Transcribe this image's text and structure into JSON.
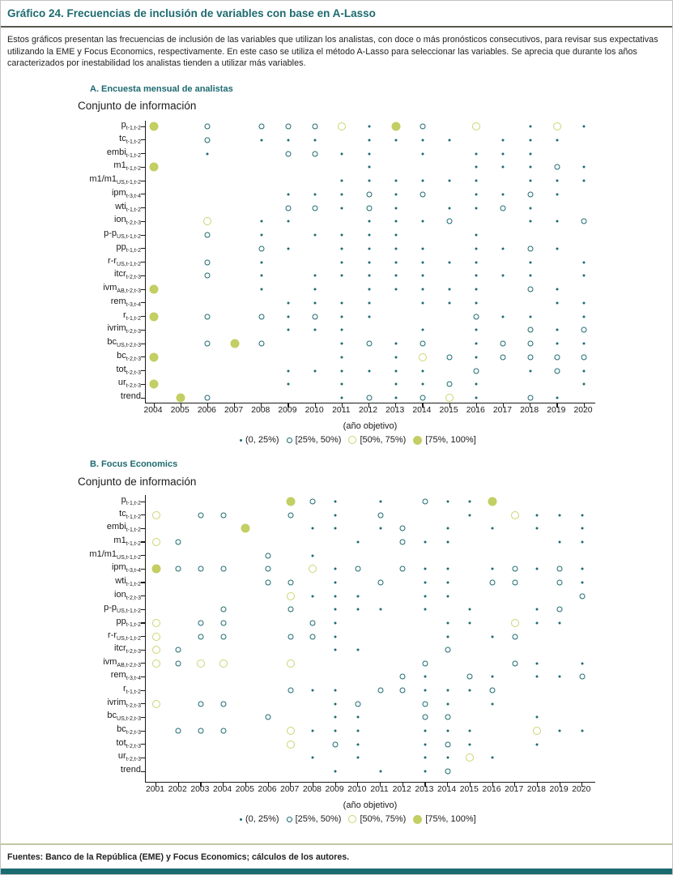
{
  "title": "Gráfico 24. Frecuencias de inclusión de variables con base en A-Lasso",
  "description": "Estos gráficos presentan las frecuencias de inclusión de las variables que utilizan los analistas, con doce o más pronósticos consecutivos, para revisar sus expectativas utilizando la EME y Focus Economics, respectivamente. En este caso se utiliza el método A-Lasso para seleccionar las variables. Se aprecia que durante los años caracterizados por inestabilidad los analistas tienden a utilizar más variables.",
  "footer": "Fuentes: Banco de la República (EME) y Focus Economics; cálculos de los autores.",
  "info_title": "Conjunto de información",
  "axis_title": "(año objetivo)",
  "colors": {
    "heading_teal": "#1d6a70",
    "dot_teal": "#1d6a70",
    "olive_fill": "#c3ce63",
    "olive_ring": "#ccd470",
    "bottom_bar": "#1a6b70",
    "footer_rule": "#c3c8a2"
  },
  "legend": {
    "items": [
      {
        "label": "(0, 25%)",
        "marker": 1
      },
      {
        "label": "[25%, 50%)",
        "marker": 2
      },
      {
        "label": "[50%, 75%)",
        "marker": 3
      },
      {
        "label": "[75%, 100%]",
        "marker": 4
      }
    ]
  },
  "chart_data": [
    {
      "type": "heatmap",
      "panel_label": "A. Encuesta mensual de analistas",
      "xlabel": "(año objetivo)",
      "ylabel": "Conjunto de información",
      "legend_bins": [
        "(0, 25%)",
        "[25%, 50%)",
        "[50%, 75%)",
        "[75%, 100%]"
      ],
      "cell_encoding": "0=not included, 1=(0,25%), 2=[25%,50%), 3=[50%,75%), 4=[75%,100%]",
      "years": [
        2004,
        2005,
        2006,
        2007,
        2008,
        2009,
        2010,
        2011,
        2012,
        2013,
        2014,
        2015,
        2016,
        2017,
        2018,
        2019,
        2020
      ],
      "variables": [
        {
          "m": "p",
          "s": "t-1,t-2"
        },
        {
          "m": "tc",
          "s": "t-1,t-2"
        },
        {
          "m": "embi",
          "s": "t-1,t-2"
        },
        {
          "m": "m1",
          "s": "t-1,t-2"
        },
        {
          "m": "m1/m1",
          "s": "US,t-1,t-2"
        },
        {
          "m": "ipm",
          "s": "t-3,t-4"
        },
        {
          "m": "wti",
          "s": "t-1,t-2"
        },
        {
          "m": "ion",
          "s": "t-2,t-3"
        },
        {
          "m": "p-p",
          "s": "US,t-1,t-2"
        },
        {
          "m": "pp",
          "s": "t-1,t-2"
        },
        {
          "m": "r-r",
          "s": "US,t-1,t-2"
        },
        {
          "m": "itcr",
          "s": "t-2,t-3"
        },
        {
          "m": "ivm",
          "s": "AB,t-2,t-3"
        },
        {
          "m": "rem",
          "s": "t-3,t-4"
        },
        {
          "m": "r",
          "s": "t-1,t-2"
        },
        {
          "m": "ivrim",
          "s": "t-2,t-3"
        },
        {
          "m": "bc",
          "s": "US,t-2,t-3"
        },
        {
          "m": "bc",
          "s": "t-2,t-3"
        },
        {
          "m": "tot",
          "s": "t-2,t-3"
        },
        {
          "m": "ur",
          "s": "t-2,t-3"
        },
        {
          "m": "trend",
          "s": ""
        }
      ],
      "matrix": [
        [
          4,
          0,
          2,
          0,
          2,
          2,
          2,
          3,
          1,
          4,
          2,
          0,
          3,
          0,
          1,
          3,
          1
        ],
        [
          0,
          0,
          2,
          0,
          1,
          1,
          1,
          0,
          1,
          1,
          1,
          1,
          0,
          1,
          1,
          1,
          0
        ],
        [
          0,
          0,
          1,
          0,
          0,
          2,
          2,
          1,
          1,
          0,
          1,
          0,
          1,
          1,
          1,
          0,
          0
        ],
        [
          4,
          0,
          0,
          0,
          0,
          0,
          0,
          0,
          1,
          0,
          0,
          0,
          1,
          1,
          1,
          2,
          1
        ],
        [
          0,
          0,
          0,
          0,
          0,
          0,
          0,
          1,
          1,
          1,
          1,
          1,
          1,
          0,
          1,
          1,
          1
        ],
        [
          0,
          0,
          0,
          0,
          0,
          1,
          1,
          1,
          2,
          1,
          2,
          0,
          1,
          1,
          2,
          1,
          0
        ],
        [
          0,
          0,
          0,
          0,
          0,
          2,
          2,
          1,
          2,
          1,
          0,
          1,
          1,
          2,
          1,
          0,
          0
        ],
        [
          0,
          0,
          3,
          0,
          1,
          1,
          0,
          0,
          1,
          1,
          1,
          2,
          0,
          0,
          1,
          1,
          2
        ],
        [
          0,
          0,
          2,
          0,
          1,
          0,
          1,
          1,
          1,
          1,
          0,
          0,
          1,
          0,
          0,
          0,
          0
        ],
        [
          0,
          0,
          0,
          0,
          2,
          1,
          0,
          1,
          1,
          1,
          1,
          0,
          1,
          1,
          2,
          1,
          0
        ],
        [
          0,
          0,
          2,
          0,
          1,
          0,
          0,
          1,
          1,
          1,
          1,
          1,
          1,
          0,
          1,
          0,
          1
        ],
        [
          0,
          0,
          2,
          0,
          1,
          0,
          1,
          1,
          1,
          1,
          1,
          0,
          1,
          1,
          1,
          0,
          1
        ],
        [
          4,
          0,
          0,
          0,
          1,
          0,
          1,
          0,
          1,
          1,
          1,
          1,
          1,
          0,
          2,
          1,
          0
        ],
        [
          0,
          0,
          0,
          0,
          0,
          1,
          1,
          1,
          1,
          0,
          1,
          1,
          1,
          0,
          0,
          1,
          1
        ],
        [
          4,
          0,
          2,
          0,
          2,
          1,
          2,
          1,
          1,
          0,
          0,
          0,
          2,
          1,
          1,
          0,
          1
        ],
        [
          0,
          0,
          0,
          0,
          0,
          1,
          1,
          1,
          0,
          0,
          1,
          0,
          1,
          0,
          2,
          1,
          2
        ],
        [
          0,
          0,
          2,
          4,
          2,
          0,
          0,
          1,
          2,
          1,
          2,
          0,
          1,
          2,
          2,
          1,
          1
        ],
        [
          4,
          0,
          0,
          0,
          0,
          0,
          0,
          1,
          0,
          1,
          3,
          2,
          1,
          2,
          2,
          2,
          2
        ],
        [
          0,
          0,
          0,
          0,
          0,
          1,
          1,
          1,
          1,
          1,
          1,
          0,
          2,
          0,
          1,
          2,
          1
        ],
        [
          4,
          0,
          0,
          0,
          0,
          1,
          0,
          1,
          0,
          1,
          1,
          2,
          1,
          0,
          0,
          0,
          1
        ],
        [
          0,
          4,
          2,
          0,
          0,
          0,
          0,
          1,
          2,
          1,
          2,
          3,
          1,
          0,
          2,
          1,
          0
        ]
      ]
    },
    {
      "type": "heatmap",
      "panel_label": "B. Focus Economics",
      "xlabel": "(año objetivo)",
      "ylabel": "Conjunto de información",
      "legend_bins": [
        "(0, 25%)",
        "[25%, 50%)",
        "[50%, 75%)",
        "[75%, 100%]"
      ],
      "cell_encoding": "0=not included, 1=(0,25%), 2=[25%,50%), 3=[50%,75%), 4=[75%,100%]",
      "years": [
        2001,
        2002,
        2003,
        2004,
        2005,
        2006,
        2007,
        2008,
        2009,
        2010,
        2011,
        2012,
        2013,
        2014,
        2015,
        2016,
        2017,
        2018,
        2019,
        2020
      ],
      "variables": [
        {
          "m": "p",
          "s": "t-1,t-2"
        },
        {
          "m": "tc",
          "s": "t-1,t-2"
        },
        {
          "m": "embi",
          "s": "t-1,t-2"
        },
        {
          "m": "m1",
          "s": "t-1,t-2"
        },
        {
          "m": "m1/m1",
          "s": "US,t-1,t-2"
        },
        {
          "m": "ipm",
          "s": "t-3,t-4"
        },
        {
          "m": "wti",
          "s": "t-1,t-2"
        },
        {
          "m": "ion",
          "s": "t-2,t-3"
        },
        {
          "m": "p-p",
          "s": "US,t-1,t-2"
        },
        {
          "m": "pp",
          "s": "t-1,t-2"
        },
        {
          "m": "r-r",
          "s": "US,t-1,t-2"
        },
        {
          "m": "itcr",
          "s": "t-2,t-3"
        },
        {
          "m": "ivm",
          "s": "AB,t-2,t-3"
        },
        {
          "m": "rem",
          "s": "t-3,t-4"
        },
        {
          "m": "r",
          "s": "t-1,t-2"
        },
        {
          "m": "ivrim",
          "s": "t-2,t-3"
        },
        {
          "m": "bc",
          "s": "US,t-2,t-3"
        },
        {
          "m": "bc",
          "s": "t-2,t-3"
        },
        {
          "m": "tot",
          "s": "t-2,t-3"
        },
        {
          "m": "ur",
          "s": "t-2,t-3"
        },
        {
          "m": "trend",
          "s": ""
        }
      ],
      "matrix": [
        [
          0,
          0,
          0,
          0,
          0,
          0,
          4,
          2,
          1,
          0,
          1,
          0,
          2,
          1,
          1,
          4,
          0,
          0,
          0,
          0
        ],
        [
          3,
          0,
          2,
          2,
          0,
          0,
          2,
          0,
          1,
          0,
          2,
          0,
          0,
          0,
          1,
          0,
          3,
          1,
          1,
          1
        ],
        [
          0,
          0,
          0,
          0,
          4,
          0,
          0,
          1,
          1,
          0,
          1,
          2,
          0,
          1,
          0,
          1,
          0,
          1,
          0,
          1
        ],
        [
          3,
          2,
          0,
          0,
          0,
          0,
          0,
          0,
          0,
          1,
          0,
          2,
          1,
          1,
          0,
          0,
          0,
          0,
          1,
          1
        ],
        [
          0,
          0,
          0,
          0,
          0,
          2,
          0,
          1,
          0,
          0,
          0,
          0,
          0,
          0,
          0,
          0,
          0,
          0,
          0,
          0
        ],
        [
          4,
          2,
          2,
          2,
          0,
          2,
          0,
          3,
          1,
          2,
          0,
          2,
          1,
          1,
          0,
          1,
          2,
          1,
          2,
          1
        ],
        [
          0,
          0,
          0,
          0,
          0,
          2,
          2,
          0,
          1,
          0,
          2,
          0,
          1,
          1,
          0,
          2,
          2,
          0,
          2,
          1
        ],
        [
          0,
          0,
          0,
          0,
          0,
          0,
          3,
          1,
          1,
          1,
          0,
          0,
          1,
          1,
          0,
          0,
          0,
          0,
          0,
          2
        ],
        [
          0,
          0,
          0,
          2,
          0,
          0,
          2,
          0,
          1,
          1,
          1,
          0,
          1,
          0,
          1,
          0,
          0,
          1,
          2,
          0
        ],
        [
          3,
          0,
          2,
          2,
          0,
          0,
          0,
          2,
          1,
          0,
          0,
          0,
          0,
          1,
          1,
          0,
          3,
          1,
          1,
          0
        ],
        [
          3,
          0,
          2,
          2,
          0,
          0,
          2,
          2,
          1,
          0,
          0,
          0,
          0,
          1,
          0,
          1,
          2,
          0,
          0,
          0
        ],
        [
          3,
          2,
          0,
          0,
          0,
          0,
          0,
          0,
          1,
          1,
          0,
          0,
          0,
          2,
          0,
          0,
          0,
          0,
          0,
          0
        ],
        [
          3,
          2,
          3,
          3,
          0,
          0,
          3,
          0,
          0,
          0,
          0,
          0,
          2,
          0,
          0,
          0,
          2,
          1,
          0,
          1
        ],
        [
          0,
          0,
          0,
          0,
          0,
          0,
          0,
          0,
          0,
          0,
          0,
          2,
          1,
          0,
          2,
          1,
          0,
          1,
          1,
          2
        ],
        [
          0,
          0,
          0,
          0,
          0,
          0,
          2,
          1,
          1,
          0,
          2,
          2,
          1,
          1,
          1,
          2,
          0,
          0,
          0,
          0
        ],
        [
          3,
          0,
          2,
          2,
          0,
          0,
          0,
          0,
          1,
          2,
          0,
          0,
          2,
          1,
          0,
          1,
          0,
          0,
          0,
          0
        ],
        [
          0,
          0,
          0,
          0,
          0,
          2,
          0,
          0,
          1,
          1,
          0,
          0,
          2,
          2,
          0,
          0,
          0,
          1,
          0,
          0
        ],
        [
          0,
          2,
          2,
          2,
          0,
          0,
          3,
          1,
          1,
          1,
          0,
          0,
          1,
          1,
          1,
          0,
          0,
          3,
          1,
          1
        ],
        [
          0,
          0,
          0,
          0,
          0,
          0,
          3,
          0,
          2,
          1,
          0,
          0,
          1,
          2,
          1,
          0,
          0,
          1,
          0,
          0
        ],
        [
          0,
          0,
          0,
          0,
          0,
          0,
          0,
          1,
          0,
          1,
          0,
          0,
          1,
          1,
          3,
          1,
          0,
          0,
          0,
          0
        ],
        [
          0,
          0,
          0,
          0,
          0,
          0,
          0,
          0,
          1,
          0,
          1,
          0,
          1,
          2,
          0,
          0,
          0,
          0,
          0,
          0
        ]
      ]
    }
  ]
}
